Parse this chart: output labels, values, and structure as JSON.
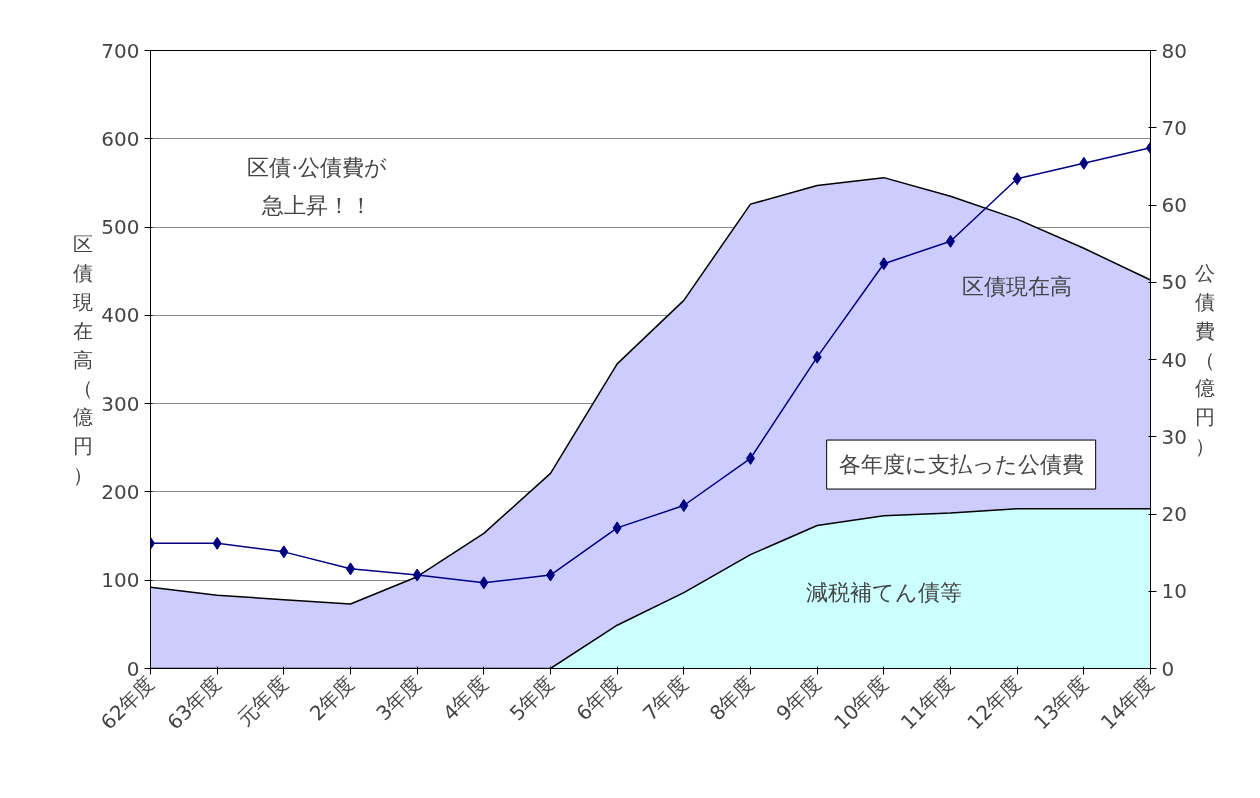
{
  "chart_data": {
    "type": "area",
    "categories": [
      "62年度",
      "63年度",
      "元年度",
      "2年度",
      "3年度",
      "4年度",
      "5年度",
      "6年度",
      "7年度",
      "8年度",
      "9年度",
      "10年度",
      "11年度",
      "12年度",
      "13年度",
      "14年度"
    ],
    "ylabel": "区債現在高（億円）",
    "y2label": "公債費（億円）",
    "series": [
      {
        "name": "区債現在高",
        "color": "#ccccff",
        "values": [
          92,
          83,
          78,
          73,
          104,
          153,
          221,
          345,
          417,
          526,
          547,
          556,
          535,
          509,
          476,
          440
        ]
      },
      {
        "name": "減税補てん債等",
        "type": "area",
        "color": "#ccffff",
        "values": [
          0,
          0,
          0,
          0,
          0,
          0,
          0,
          49,
          86,
          129,
          162,
          173,
          176,
          181,
          181,
          181
        ]
      },
      {
        "type": "line",
        "axis": "y2",
        "color": "#000080",
        "marker": "diamond",
        "values": [
          16.2,
          16.2,
          15.1,
          12.9,
          12.1,
          11.1,
          12.1,
          18.2,
          21.1,
          27.2,
          40.3,
          52.4,
          55.3,
          63.4,
          65.4,
          67.4
        ]
      }
    ],
    "ylim": [
      0,
      700
    ],
    "yticks": [
      0,
      100,
      200,
      300,
      400,
      500,
      600,
      700
    ],
    "y2lim": [
      0,
      80
    ],
    "y2ticks": [
      0,
      10,
      20,
      30,
      40,
      50,
      60,
      70,
      80
    ],
    "grid": "y",
    "annotations": [
      "区債·公債費が",
      "急上昇！！",
      "各年度に支払った公債費"
    ]
  }
}
